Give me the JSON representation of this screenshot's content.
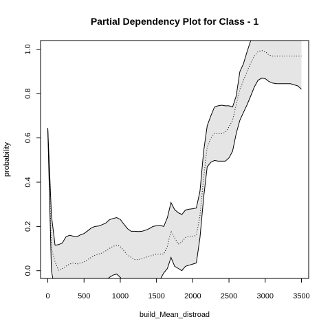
{
  "chart_data": {
    "type": "line",
    "title": "Partial Dependency Plot for Class - 1",
    "xlabel": "build_Mean_distroad",
    "ylabel": "probability",
    "xlim": [
      -100,
      3600
    ],
    "ylim": [
      -0.035,
      1.04
    ],
    "xticks": [
      "0",
      "500",
      "1000",
      "1500",
      "2000",
      "2500",
      "3000",
      "3500"
    ],
    "yticks": [
      "0.0",
      "0.2",
      "0.4",
      "0.6",
      "0.8",
      "1.0"
    ],
    "grid": false,
    "colors": {
      "band": "#e5e5e5",
      "line": "#000000"
    },
    "x": [
      0,
      50,
      100,
      150,
      200,
      250,
      300,
      350,
      400,
      450,
      500,
      550,
      600,
      650,
      700,
      750,
      800,
      850,
      900,
      950,
      1000,
      1050,
      1100,
      1150,
      1200,
      1250,
      1300,
      1350,
      1400,
      1450,
      1500,
      1550,
      1600,
      1650,
      1700,
      1750,
      1800,
      1850,
      1900,
      1950,
      2000,
      2050,
      2100,
      2150,
      2200,
      2250,
      2300,
      2350,
      2400,
      2450,
      2500,
      2550,
      2600,
      2650,
      2700,
      2750,
      2800,
      2850,
      2900,
      2950,
      3000,
      3050,
      3100,
      3150,
      3200,
      3250,
      3300,
      3350,
      3400,
      3450,
      3500
    ],
    "series": [
      {
        "role": "upper",
        "style": "solid",
        "values": [
          0.645,
          0.25,
          0.115,
          0.118,
          0.125,
          0.153,
          0.16,
          0.156,
          0.153,
          0.162,
          0.168,
          0.18,
          0.193,
          0.2,
          0.202,
          0.208,
          0.215,
          0.23,
          0.236,
          0.24,
          0.232,
          0.21,
          0.19,
          0.178,
          0.178,
          0.177,
          0.178,
          0.183,
          0.19,
          0.2,
          0.203,
          0.205,
          0.2,
          0.24,
          0.308,
          0.276,
          0.262,
          0.254,
          0.274,
          0.278,
          0.28,
          0.283,
          0.36,
          0.54,
          0.655,
          0.7,
          0.74,
          0.745,
          0.748,
          0.745,
          0.745,
          0.74,
          0.79,
          0.9,
          0.935,
          0.99,
          1.04,
          1.06,
          1.07,
          1.07,
          1.07,
          1.07,
          1.07,
          1.07,
          1.07,
          1.07,
          1.07,
          1.07,
          1.07,
          1.07,
          1.07
        ]
      },
      {
        "role": "mean",
        "style": "dotted",
        "values": [
          0.64,
          0.1,
          0.04,
          0.0,
          0.01,
          0.02,
          0.03,
          0.035,
          0.03,
          0.035,
          0.04,
          0.05,
          0.06,
          0.07,
          0.075,
          0.08,
          0.09,
          0.1,
          0.11,
          0.115,
          0.11,
          0.09,
          0.07,
          0.06,
          0.05,
          0.05,
          0.055,
          0.06,
          0.065,
          0.07,
          0.075,
          0.075,
          0.075,
          0.11,
          0.18,
          0.15,
          0.12,
          0.13,
          0.15,
          0.155,
          0.155,
          0.16,
          0.25,
          0.42,
          0.56,
          0.6,
          0.62,
          0.62,
          0.62,
          0.625,
          0.65,
          0.68,
          0.75,
          0.82,
          0.86,
          0.9,
          0.94,
          0.97,
          0.99,
          0.995,
          0.99,
          0.975,
          0.97,
          0.97,
          0.97,
          0.97,
          0.97,
          0.97,
          0.97,
          0.97,
          0.97
        ]
      },
      {
        "role": "lower",
        "style": "solid",
        "values": [
          0.64,
          0.0,
          -0.09,
          -0.13,
          -0.12,
          -0.13,
          -0.13,
          -0.13,
          -0.13,
          -0.12,
          -0.11,
          -0.1,
          -0.09,
          -0.08,
          -0.07,
          -0.06,
          -0.045,
          -0.03,
          -0.02,
          -0.015,
          -0.03,
          -0.05,
          -0.07,
          -0.08,
          -0.09,
          -0.09,
          -0.085,
          -0.08,
          -0.075,
          -0.07,
          -0.06,
          -0.04,
          -0.01,
          0.01,
          0.06,
          0.02,
          0.01,
          0.0,
          0.02,
          0.025,
          0.03,
          0.035,
          0.15,
          0.33,
          0.47,
          0.49,
          0.498,
          0.495,
          0.495,
          0.495,
          0.51,
          0.54,
          0.62,
          0.68,
          0.715,
          0.75,
          0.79,
          0.83,
          0.86,
          0.87,
          0.868,
          0.855,
          0.848,
          0.845,
          0.845,
          0.845,
          0.845,
          0.845,
          0.84,
          0.835,
          0.82
        ]
      }
    ]
  }
}
